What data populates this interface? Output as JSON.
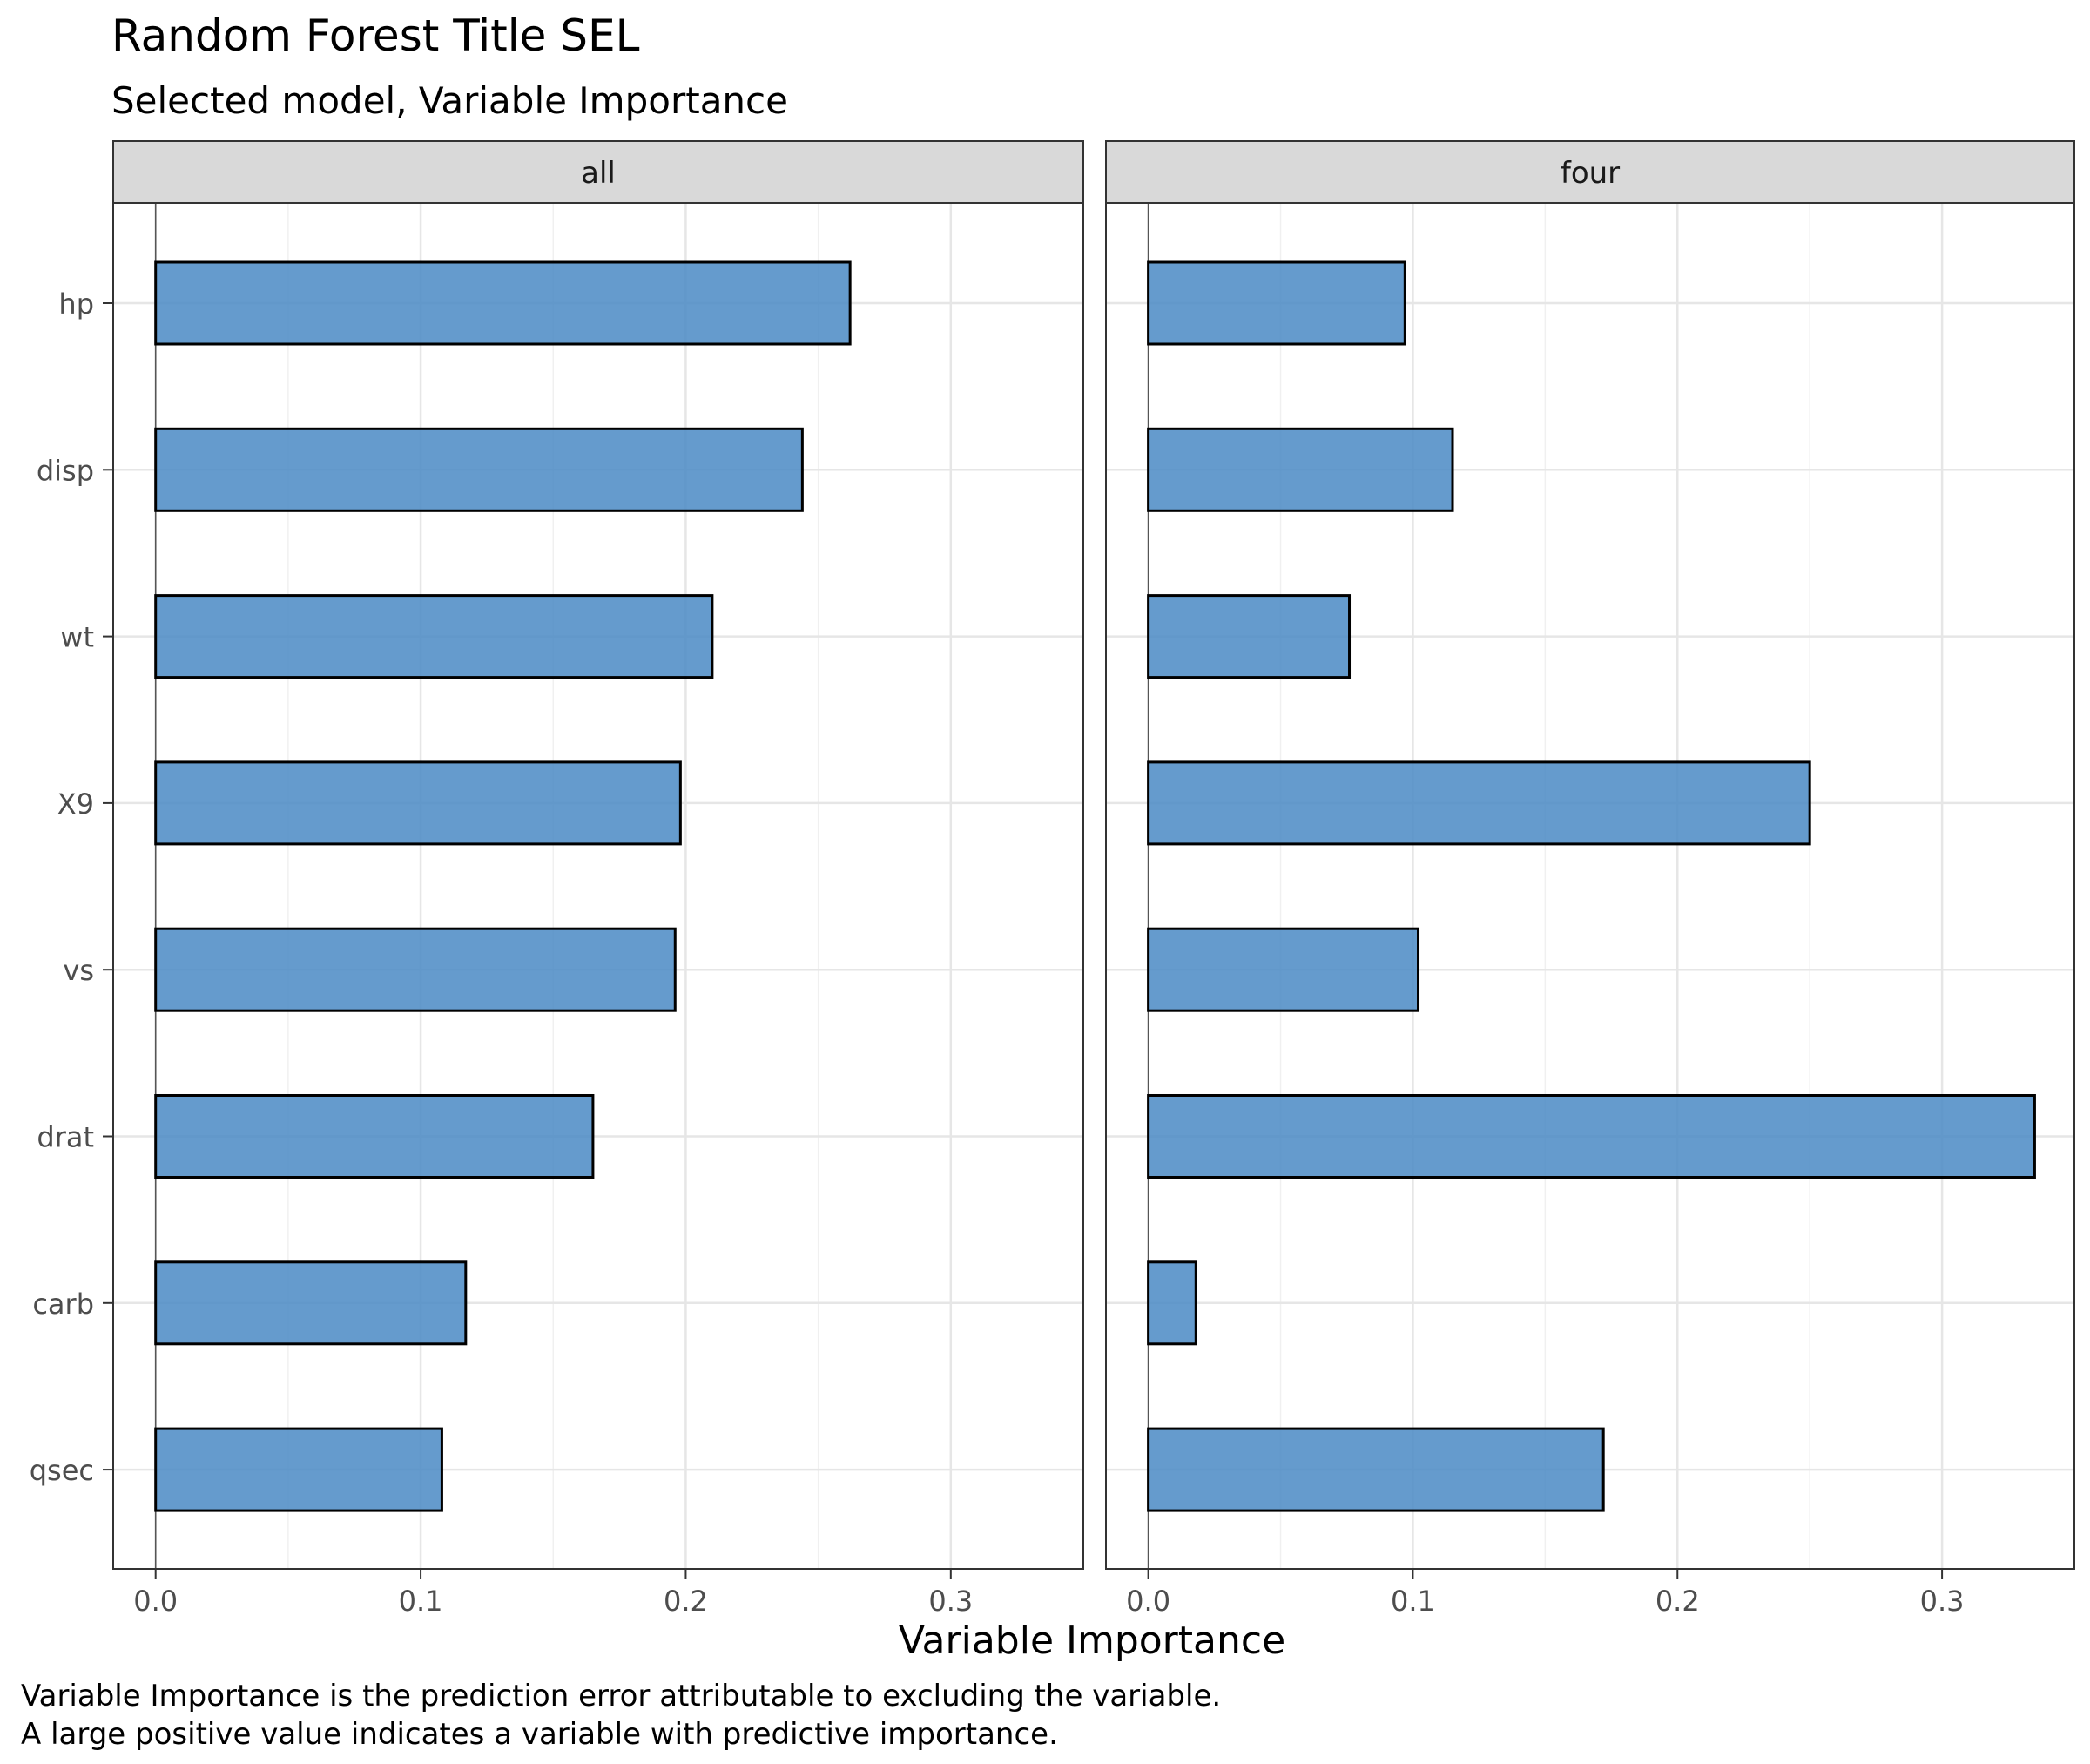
{
  "chart_data": {
    "type": "bar",
    "orientation": "horizontal",
    "title": "Random Forest Title SEL",
    "subtitle": "Selected model, Variable Importance",
    "xlabel": "Variable Importance",
    "ylabel": "",
    "caption_lines": [
      "Variable Importance is the prediction error attributable to excluding the variable.",
      "A large positive value indicates a variable with predictive importance."
    ],
    "categories": [
      "hp",
      "disp",
      "wt",
      "X9",
      "vs",
      "drat",
      "carb",
      "qsec"
    ],
    "xlim": [
      -0.016,
      0.35
    ],
    "x_ticks": [
      0.0,
      0.1,
      0.2,
      0.3
    ],
    "x_tick_labels": [
      "0.0",
      "0.1",
      "0.2",
      "0.3"
    ],
    "grid": true,
    "bar_color": "#4a89c4",
    "bar_outline": "#000000",
    "panels": [
      {
        "name": "all",
        "values": [
          0.262,
          0.244,
          0.21,
          0.198,
          0.196,
          0.165,
          0.117,
          0.108
        ]
      },
      {
        "name": "four",
        "values": [
          0.097,
          0.115,
          0.076,
          0.25,
          0.102,
          0.335,
          0.018,
          0.172
        ]
      }
    ]
  }
}
